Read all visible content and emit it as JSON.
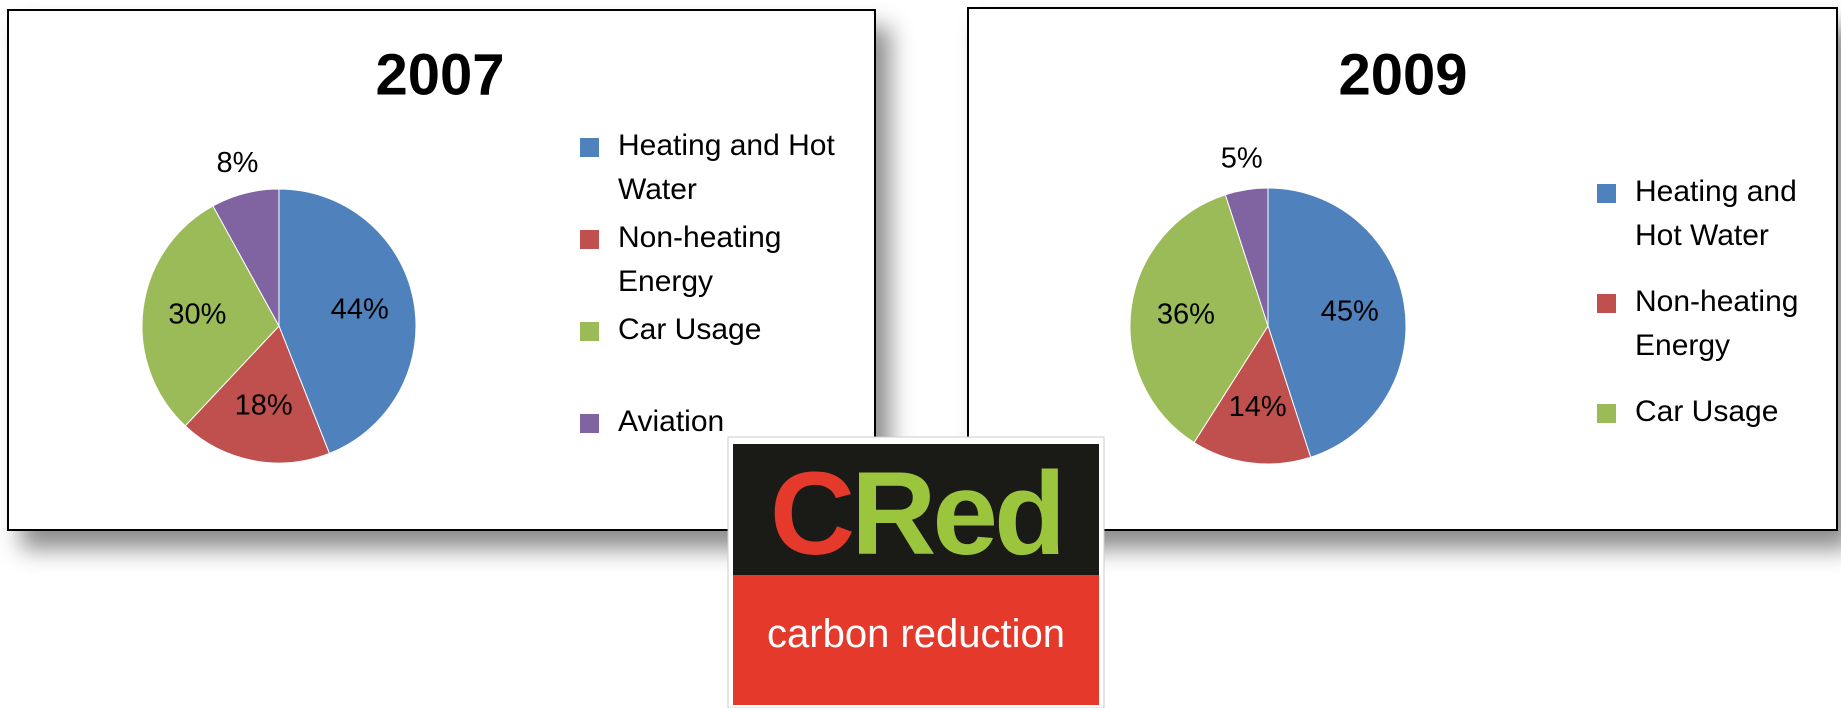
{
  "chart_data": [
    {
      "type": "pie",
      "title": "2007",
      "categories": [
        "Heating and Hot Water",
        "Non-heating Energy",
        "Car Usage",
        "Aviation"
      ],
      "values": [
        44,
        18,
        30,
        8
      ],
      "value_labels": [
        "44%",
        "18%",
        "30%",
        "8%"
      ],
      "colors": [
        "#4f81bd",
        "#c0504d",
        "#9bbb59",
        "#8064a2"
      ],
      "legend": "right"
    },
    {
      "type": "pie",
      "title": "2009",
      "categories": [
        "Heating and Hot Water",
        "Non-heating Energy",
        "Car Usage",
        null
      ],
      "values": [
        45,
        14,
        36,
        5
      ],
      "value_labels": [
        "45%",
        "14%",
        "36%",
        "5%"
      ],
      "colors": [
        "#4f81bd",
        "#c0504d",
        "#9bbb59",
        "#8064a2"
      ],
      "legend": "right"
    }
  ],
  "logo": {
    "mark": [
      "C",
      "Red"
    ],
    "tagline": "carbon reduction"
  }
}
